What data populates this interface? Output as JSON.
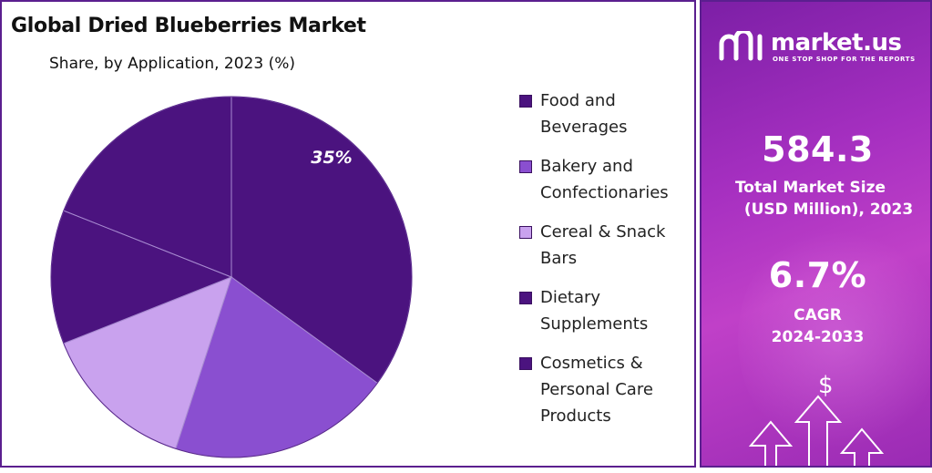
{
  "chart_data": {
    "type": "pie",
    "title": "Global Dried Blueberries Market",
    "subtitle": "Share, by Application, 2023 (%)",
    "categories": [
      "Food and Beverages",
      "Bakery and Confectionaries",
      "Cereal & Snack Bars",
      "Dietary Supplements",
      "Cosmetics & Personal Care Products"
    ],
    "values": [
      35,
      20,
      14,
      12,
      19
    ],
    "data_labels": [
      "35%",
      "",
      "",
      "",
      ""
    ],
    "legend_position": "right",
    "colors": [
      "#4b137f",
      "#8a4fd0",
      "#c9a2ee",
      "#4b137f",
      "#4b137f"
    ]
  },
  "legend": {
    "items": [
      {
        "label": "Food and Beverages",
        "color": "#4b137f"
      },
      {
        "label": "Bakery and Confectionaries",
        "color": "#8a4fd0"
      },
      {
        "label": "Cereal & Snack Bars",
        "color": "#c9a2ee"
      },
      {
        "label": "Dietary Supplements",
        "color": "#4b137f"
      },
      {
        "label": "Cosmetics & Personal Care Products",
        "color": "#4b137f"
      }
    ]
  },
  "brand": {
    "name": "market.us",
    "tagline": "ONE STOP SHOP FOR THE REPORTS"
  },
  "stats": {
    "market_size_value": "584.3",
    "market_size_label_1": "Total Market Size",
    "market_size_label_2": "(USD Million), 2023",
    "cagr_value": "6.7%",
    "cagr_label_1": "CAGR",
    "cagr_label_2": "2024-2033"
  },
  "icons": {
    "dollar": "$"
  }
}
